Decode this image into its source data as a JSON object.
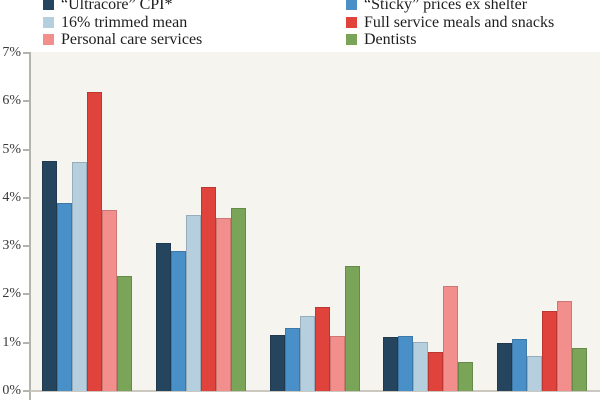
{
  "legend": {
    "columns": [
      {
        "items": [
          {
            "label": "“Ultracore” CPI*",
            "color": "#25455f"
          },
          {
            "label": "16% trimmed mean",
            "color": "#b5cfdf"
          },
          {
            "label": "Personal care services",
            "color": "#f28f8d"
          }
        ]
      },
      {
        "items": [
          {
            "label": "“Sticky” prices ex shelter",
            "color": "#4a90c8"
          },
          {
            "label": "Full service meals and snacks",
            "color": "#e0423c"
          },
          {
            "label": "Dentists",
            "color": "#7aa559"
          }
        ]
      }
    ]
  },
  "chart_data": {
    "type": "bar",
    "title": "",
    "xlabel": "",
    "ylabel": "",
    "ylim": [
      0,
      7
    ],
    "y_tick_labels": [
      "0%",
      "1%",
      "2%",
      "3%",
      "4%",
      "5%",
      "6%",
      "7%"
    ],
    "grid": false,
    "legend_position": "top",
    "plot_background": "#f5f4ef",
    "axis_color": "#b5b3ae",
    "categories": [
      "",
      "",
      "",
      "",
      ""
    ],
    "series": [
      {
        "name": "“Ultracore” CPI*",
        "color": "#25455f",
        "values": [
          4.77,
          3.07,
          1.16,
          1.12,
          0.99
        ]
      },
      {
        "name": "“Sticky” prices ex shelter",
        "color": "#4a90c8",
        "values": [
          3.9,
          2.9,
          1.31,
          1.14,
          1.07
        ]
      },
      {
        "name": "16% trimmed mean",
        "color": "#b5cfdf",
        "values": [
          4.74,
          3.64,
          1.55,
          1.01,
          0.73
        ]
      },
      {
        "name": "Full service meals and snacks",
        "color": "#e0423c",
        "values": [
          6.2,
          4.23,
          1.74,
          0.81,
          1.66
        ]
      },
      {
        "name": "Personal care services",
        "color": "#f28f8d",
        "values": [
          3.74,
          3.58,
          1.13,
          2.18,
          1.87
        ]
      },
      {
        "name": "Dentists",
        "color": "#7aa559",
        "values": [
          2.39,
          3.78,
          2.58,
          0.61,
          0.89
        ]
      }
    ]
  }
}
